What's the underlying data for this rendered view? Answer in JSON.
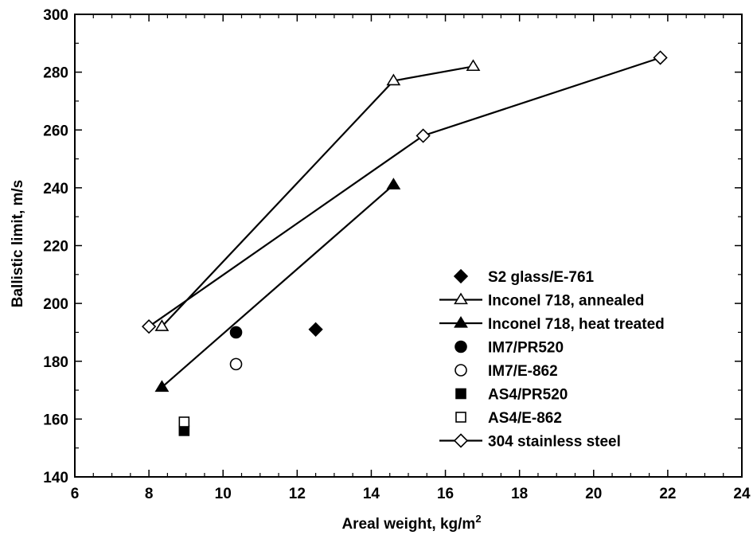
{
  "chart_data": {
    "type": "scatter",
    "xlabel": "Areal weight, kg/m",
    "xlabel_sup": "2",
    "ylabel": "Ballistic limit, m/s",
    "xlim": [
      6,
      24
    ],
    "ylim": [
      140,
      300
    ],
    "xticks": [
      6,
      8,
      10,
      12,
      14,
      16,
      18,
      20,
      22,
      24
    ],
    "yticks": [
      140,
      160,
      180,
      200,
      220,
      240,
      260,
      280,
      300
    ],
    "grid": false,
    "legend_position": "center-right",
    "series": [
      {
        "name": "S2 glass/E-761",
        "marker": "diamond",
        "filled": true,
        "line": false,
        "points": [
          [
            12.5,
            191
          ]
        ]
      },
      {
        "name": "Inconel 718, annealed",
        "marker": "triangle",
        "filled": false,
        "line": true,
        "points": [
          [
            8.35,
            192
          ],
          [
            14.6,
            277
          ],
          [
            16.75,
            282
          ]
        ]
      },
      {
        "name": "Inconel 718, heat treated",
        "marker": "triangle",
        "filled": true,
        "line": true,
        "points": [
          [
            8.35,
            171
          ],
          [
            14.6,
            241
          ]
        ]
      },
      {
        "name": "IM7/PR520",
        "marker": "circle",
        "filled": true,
        "line": false,
        "points": [
          [
            10.35,
            190
          ]
        ]
      },
      {
        "name": "IM7/E-862",
        "marker": "circle",
        "filled": false,
        "line": false,
        "points": [
          [
            10.35,
            179
          ]
        ]
      },
      {
        "name": "AS4/PR520",
        "marker": "square",
        "filled": true,
        "line": false,
        "points": [
          [
            8.95,
            156
          ]
        ]
      },
      {
        "name": "AS4/E-862",
        "marker": "square",
        "filled": false,
        "line": false,
        "points": [
          [
            8.95,
            159
          ]
        ]
      },
      {
        "name": "304 stainless steel",
        "marker": "diamond",
        "filled": false,
        "line": true,
        "points": [
          [
            8.0,
            192
          ],
          [
            15.4,
            258
          ],
          [
            21.8,
            285
          ]
        ]
      }
    ]
  }
}
